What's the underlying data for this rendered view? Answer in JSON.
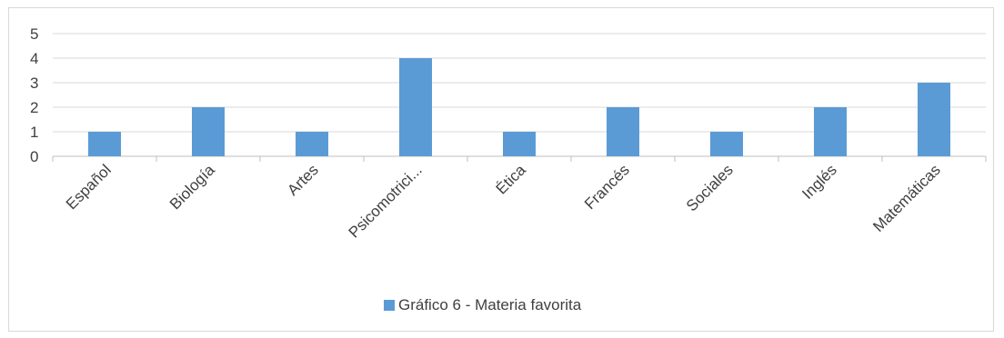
{
  "chart_data": {
    "type": "bar",
    "categories": [
      "Español",
      "Biología",
      "Artes",
      "Psicomotrici...",
      "Ética",
      "Francés",
      "Sociales",
      "Inglés",
      "Matemáticas"
    ],
    "series": [
      {
        "name": "Gráfico 6 - Materia favorita",
        "values": [
          1,
          2,
          1,
          4,
          1,
          2,
          1,
          2,
          3
        ],
        "color": "#5b9bd5"
      }
    ],
    "ylim": [
      0,
      5
    ],
    "yticks": [
      "0",
      "1",
      "2",
      "3",
      "4",
      "5"
    ],
    "grid": true,
    "legend_position": "bottom",
    "title": "",
    "xlabel": "",
    "ylabel": ""
  }
}
